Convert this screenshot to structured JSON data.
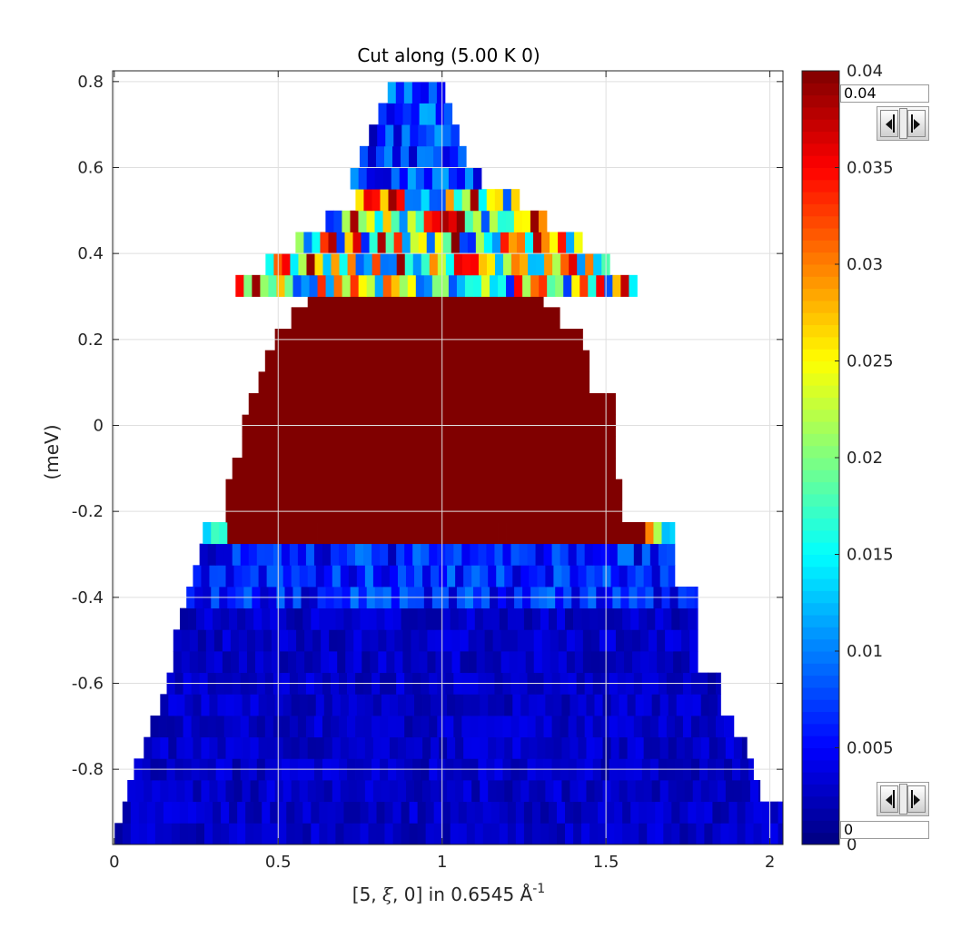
{
  "chart_data": {
    "type": "heatmap",
    "title": "Cut along (5.00 K 0)",
    "xlabel_main": "[5, ",
    "xlabel_xi": "ξ",
    "xlabel_rest": ", 0] in 0.6545 Å",
    "xlabel_sup": "-1",
    "ylabel": "(meV)",
    "xlim": [
      -0.005,
      2.04
    ],
    "ylim": [
      -0.975,
      0.825
    ],
    "x_ticks": [
      "0",
      "0.5",
      "1",
      "1.5",
      "2"
    ],
    "x_tick_values": [
      0,
      0.5,
      1,
      1.5,
      2
    ],
    "y_ticks": [
      "0.8",
      "0.6",
      "0.4",
      "0.2",
      "0",
      "-0.2",
      "-0.4",
      "-0.6",
      "-0.8"
    ],
    "y_tick_values": [
      0.8,
      0.6,
      0.4,
      0.2,
      0,
      -0.2,
      -0.4,
      -0.6,
      -0.8
    ],
    "grid": true,
    "colormap": "jet",
    "clim": [
      0,
      0.04
    ],
    "bin_x": 0.025,
    "bin_y": 0.05,
    "colorbar_ticks": [
      "0",
      "0.005",
      "0.01",
      "0.015",
      "0.02",
      "0.025",
      "0.03",
      "0.035",
      "0.04"
    ],
    "colorbar_tick_values": [
      0,
      0.005,
      0.01,
      0.015,
      0.02,
      0.025,
      0.03,
      0.035,
      0.04
    ],
    "coverage": [
      {
        "y": -0.95,
        "xmin": 0.0,
        "xmax": 2.04
      },
      {
        "y": -0.9,
        "xmin": 0.025,
        "xmax": 2.04
      },
      {
        "y": -0.85,
        "xmin": 0.04,
        "xmax": 1.97
      },
      {
        "y": -0.8,
        "xmin": 0.06,
        "xmax": 1.95
      },
      {
        "y": -0.75,
        "xmin": 0.09,
        "xmax": 1.93
      },
      {
        "y": -0.7,
        "xmin": 0.11,
        "xmax": 1.89
      },
      {
        "y": -0.65,
        "xmin": 0.14,
        "xmax": 1.85
      },
      {
        "y": -0.6,
        "xmin": 0.16,
        "xmax": 1.85
      },
      {
        "y": -0.55,
        "xmin": 0.18,
        "xmax": 1.78
      },
      {
        "y": -0.5,
        "xmin": 0.18,
        "xmax": 1.78
      },
      {
        "y": -0.45,
        "xmin": 0.2,
        "xmax": 1.78
      },
      {
        "y": -0.4,
        "xmin": 0.22,
        "xmax": 1.78
      },
      {
        "y": -0.35,
        "xmin": 0.24,
        "xmax": 1.71
      },
      {
        "y": -0.3,
        "xmin": 0.26,
        "xmax": 1.71
      },
      {
        "y": -0.25,
        "xmin": 0.27,
        "xmax": 1.71
      }
    ],
    "hot_region": {
      "rows": [
        {
          "y": -0.25,
          "xmin": 0.34,
          "xmax": 1.63
        },
        {
          "y": -0.2,
          "xmin": 0.34,
          "xmax": 1.55
        },
        {
          "y": -0.15,
          "xmin": 0.34,
          "xmax": 1.55
        },
        {
          "y": -0.1,
          "xmin": 0.36,
          "xmax": 1.53
        },
        {
          "y": -0.05,
          "xmin": 0.39,
          "xmax": 1.53
        },
        {
          "y": 0.0,
          "xmin": 0.39,
          "xmax": 1.53
        },
        {
          "y": 0.05,
          "xmin": 0.41,
          "xmax": 1.53
        },
        {
          "y": 0.1,
          "xmin": 0.44,
          "xmax": 1.45
        },
        {
          "y": 0.15,
          "xmin": 0.46,
          "xmax": 1.45
        },
        {
          "y": 0.2,
          "xmin": 0.49,
          "xmax": 1.43
        },
        {
          "y": 0.25,
          "xmin": 0.54,
          "xmax": 1.36
        },
        {
          "y": 0.3,
          "xmin": 0.59,
          "xmax": 1.31
        },
        {
          "y": 0.35,
          "xmin": 0.64,
          "xmax": 1.2
        }
      ],
      "value": 0.04
    },
    "peak_regions": [
      {
        "xmin": 0.37,
        "xmax": 1.59,
        "ymin": 0.3,
        "ymax": 0.55,
        "value": 0.02
      },
      {
        "xmin": 0.72,
        "xmax": 1.1,
        "ymin": 0.55,
        "ymax": 0.8,
        "value": 0.006
      }
    ],
    "cold_value": 0.002,
    "transition_value": 0.022
  },
  "controls": {
    "upper_value": "0.04",
    "lower_value": "0"
  },
  "icons": {
    "left_arrow": "arrow-left-icon",
    "right_arrow": "arrow-right-icon"
  },
  "colors": {
    "axis": "#262626",
    "grid": "#dfdfdf"
  }
}
